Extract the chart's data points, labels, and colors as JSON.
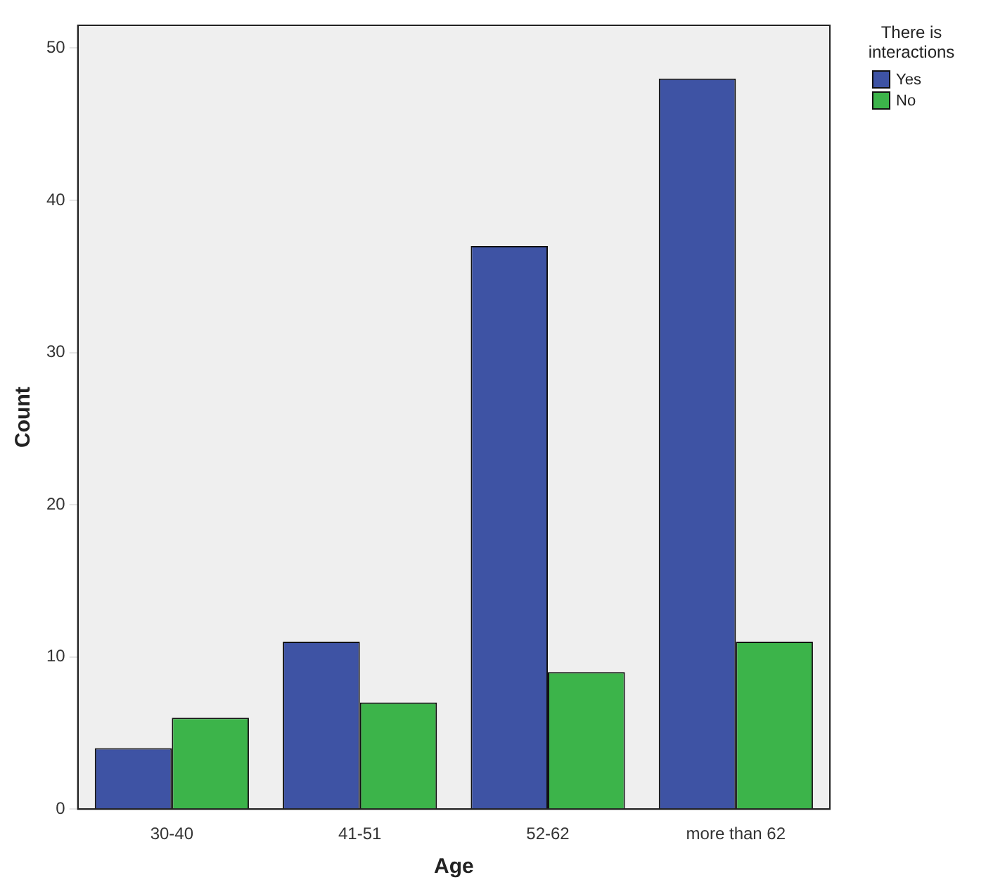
{
  "chart_data": {
    "type": "bar",
    "xlabel": "Age",
    "ylabel": "Count",
    "legend_title": "There is interactions",
    "categories": [
      "30-40",
      "41-51",
      "52-62",
      "more than 62"
    ],
    "series": [
      {
        "name": "Yes",
        "color": "#3e53a4",
        "values": [
          4,
          11,
          37,
          48
        ]
      },
      {
        "name": "No",
        "color": "#3cb44a",
        "values": [
          6,
          7,
          9,
          11
        ]
      }
    ],
    "ylim": [
      0,
      51.5
    ],
    "yticks": [
      0,
      10,
      20,
      30,
      40,
      50
    ],
    "grid": false,
    "legend": "top right"
  }
}
